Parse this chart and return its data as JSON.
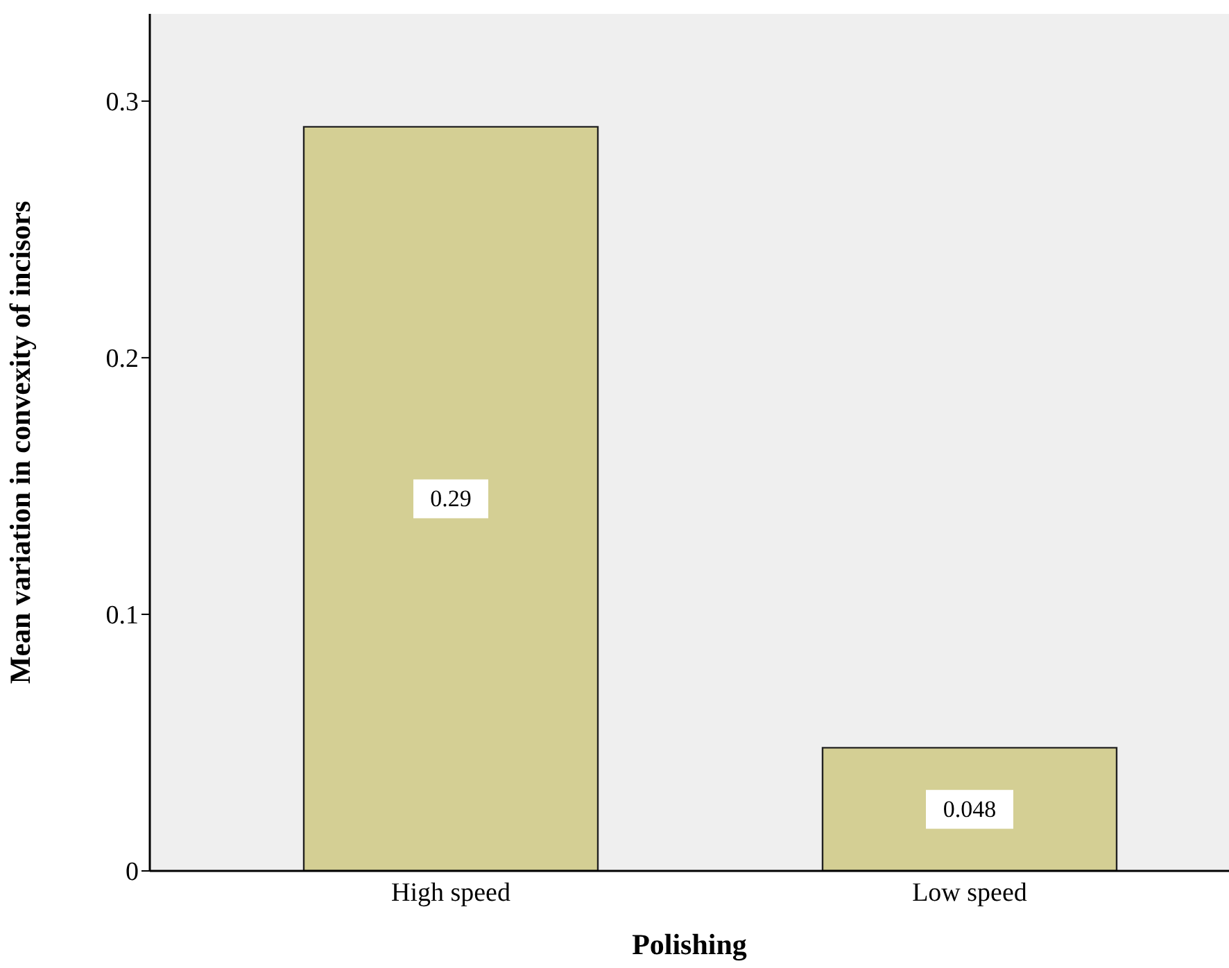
{
  "chart_data": {
    "type": "bar",
    "xlabel": "Polishing",
    "ylabel": "Mean variation in convexity of incisors",
    "categories": [
      "High speed",
      "Low speed"
    ],
    "values": [
      0.29,
      0.048
    ],
    "color": "#d4cf94",
    "data_labels": true,
    "ylim": [
      0,
      0.334
    ],
    "yticks": [
      0,
      0.1,
      0.2,
      0.3
    ]
  }
}
